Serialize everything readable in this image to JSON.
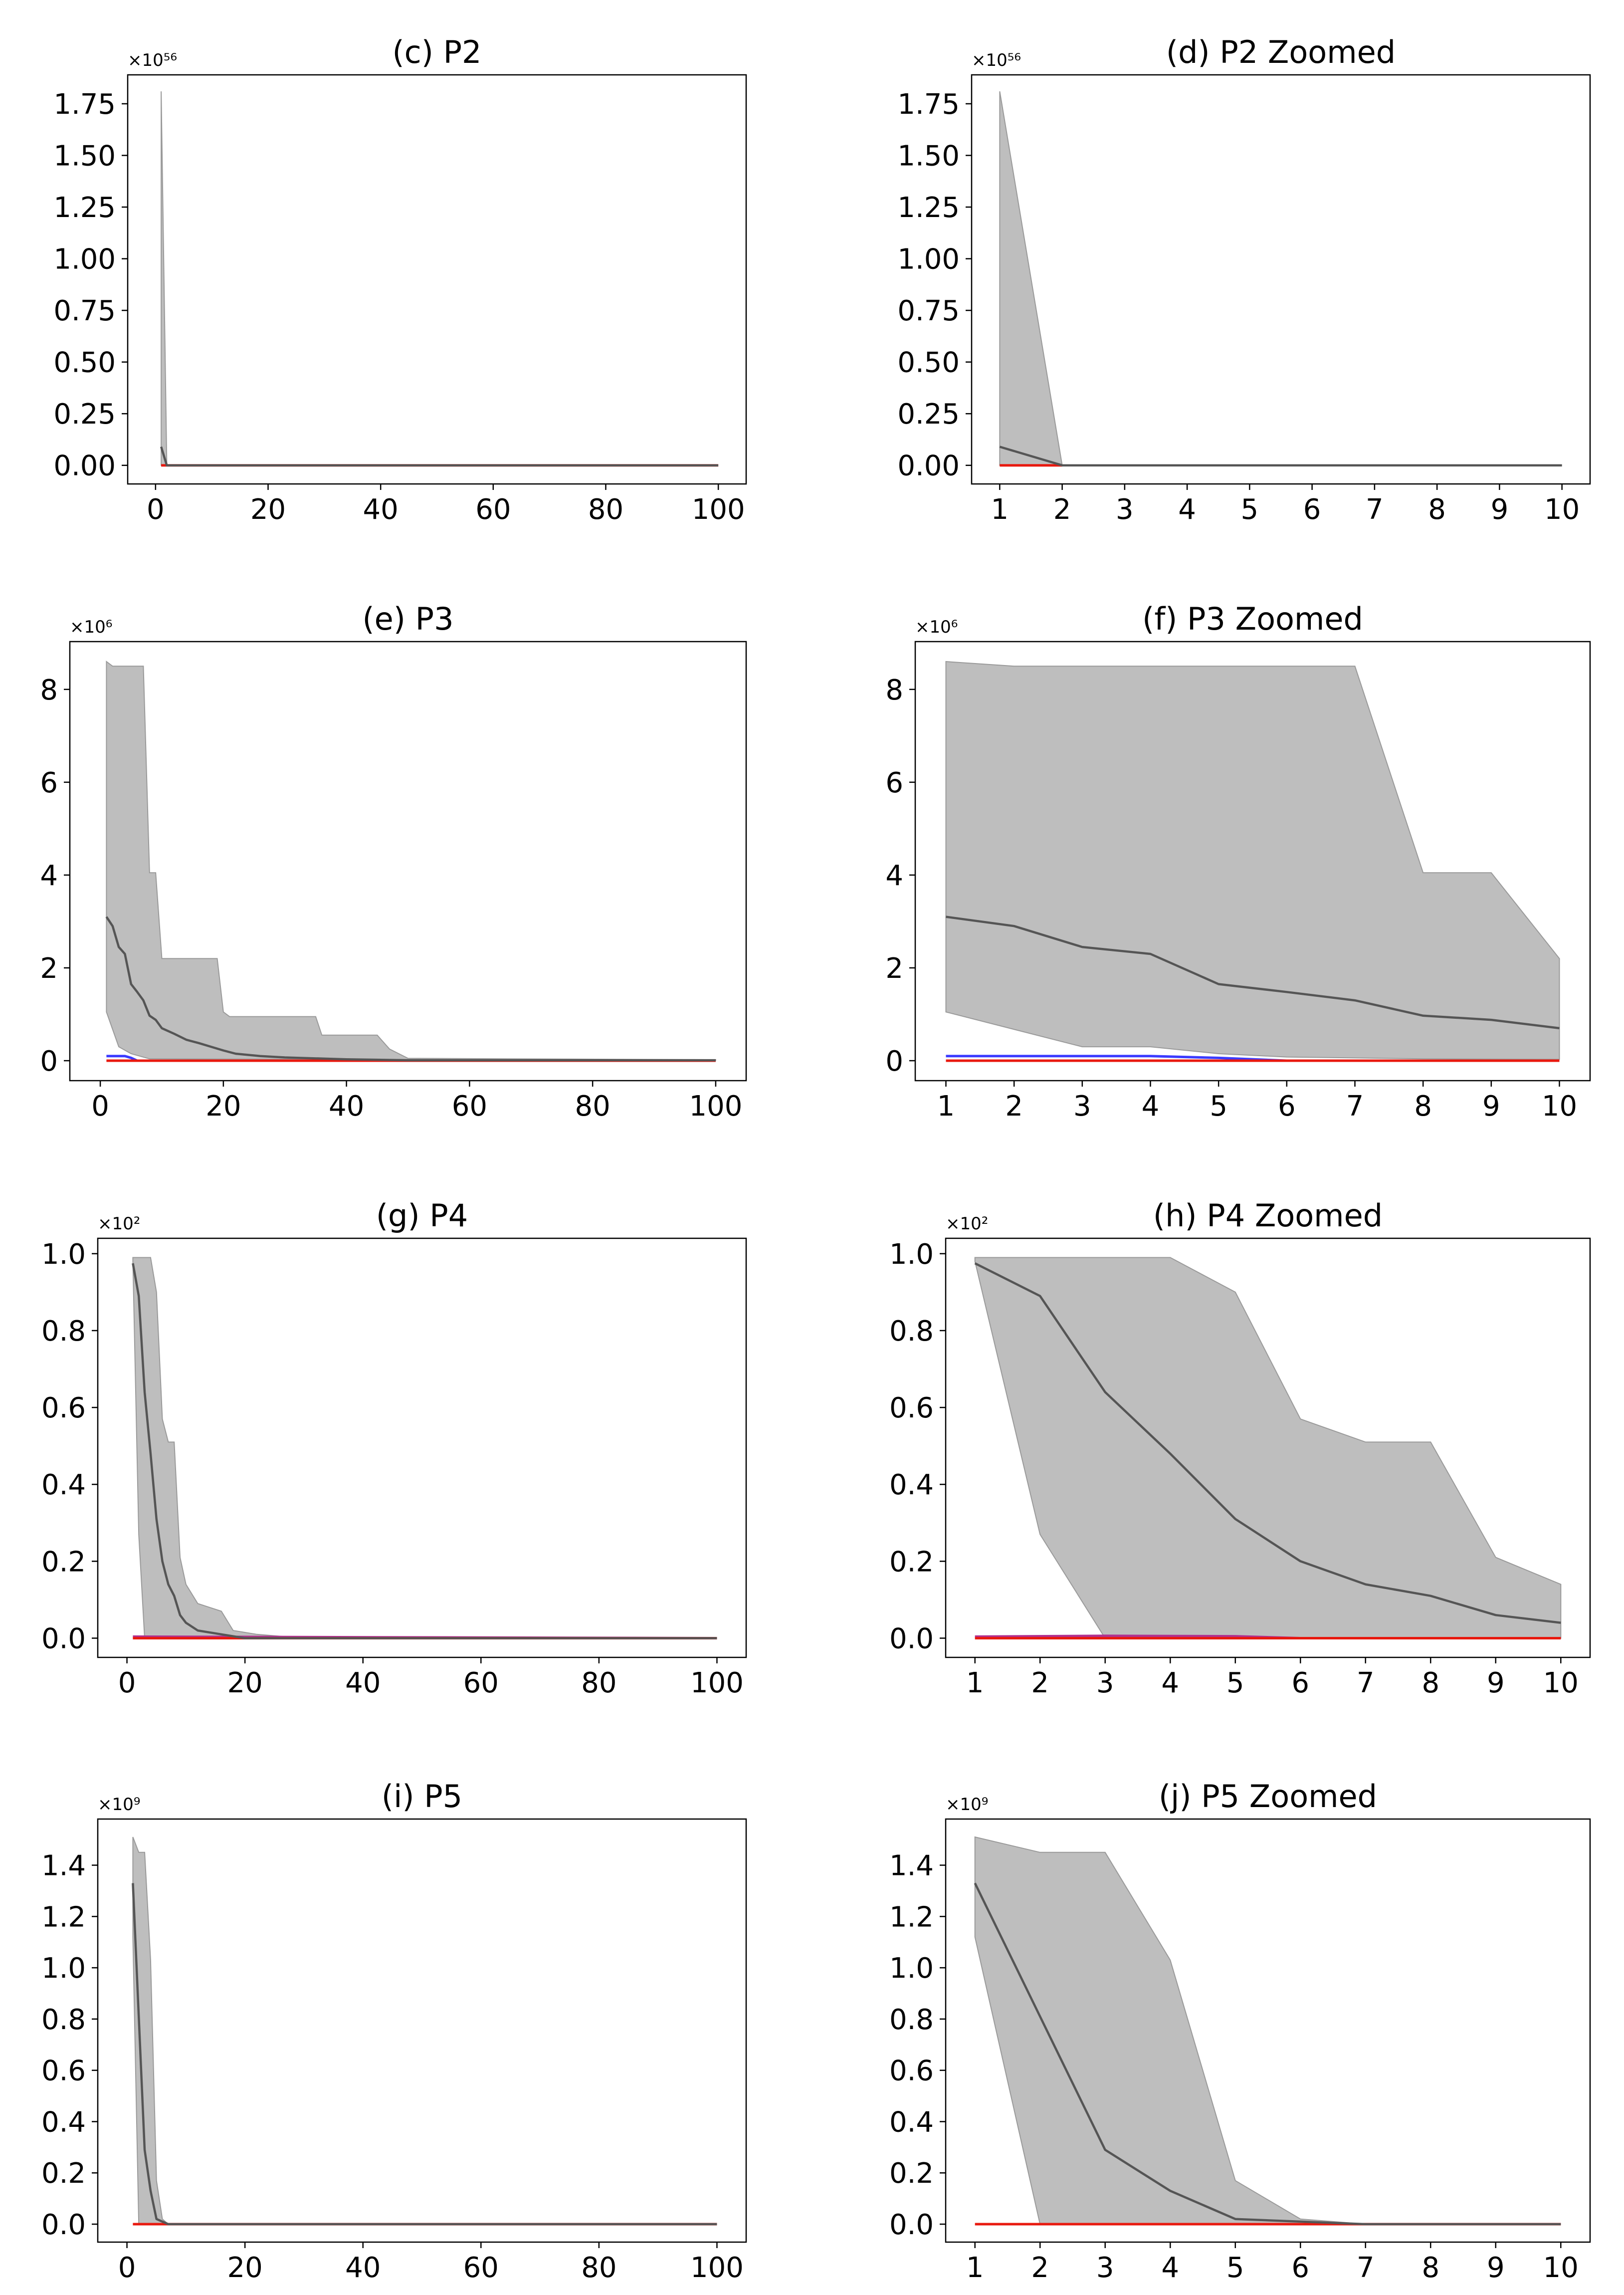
{
  "colors": {
    "band": "#bebebe",
    "band_edge": "#9a9a9a",
    "mean": "#555555",
    "red": "#e8190f",
    "blue": "#3b3bff",
    "magenta": "#b03090",
    "axis": "#000000"
  },
  "chart_data": [
    {
      "id": "c",
      "type": "line",
      "title": "(c) P2",
      "multiplier": "×10⁵⁶",
      "xlim": [
        -4.95,
        104.95
      ],
      "ylim": [
        -0.09,
        1.89
      ],
      "xticks": [
        0,
        20,
        40,
        60,
        80,
        100
      ],
      "yticks": [
        0,
        0.25,
        0.5,
        0.75,
        1.0,
        1.25,
        1.5,
        1.75
      ],
      "ytick_labels": [
        "0.00",
        "0.25",
        "0.50",
        "0.75",
        "1.00",
        "1.25",
        "1.50",
        "1.75"
      ],
      "band_upper": [
        [
          1,
          1.81
        ],
        [
          2,
          0
        ],
        [
          100,
          0
        ]
      ],
      "band_lower": [
        [
          1,
          0
        ],
        [
          100,
          0
        ]
      ],
      "mean": [
        [
          1,
          0.09
        ],
        [
          2,
          0
        ],
        [
          100,
          0
        ]
      ],
      "flat_lines": [
        {
          "color": "red",
          "points": [
            [
              1,
              0
            ],
            [
              100,
              0
            ]
          ]
        }
      ]
    },
    {
      "id": "d",
      "type": "line",
      "title": "(d) P2 Zoomed",
      "multiplier": "×10⁵⁶",
      "xlim": [
        0.55,
        10.45
      ],
      "ylim": [
        -0.09,
        1.89
      ],
      "xticks": [
        1,
        2,
        3,
        4,
        5,
        6,
        7,
        8,
        9,
        10
      ],
      "yticks": [
        0,
        0.25,
        0.5,
        0.75,
        1.0,
        1.25,
        1.5,
        1.75
      ],
      "ytick_labels": [
        "0.00",
        "0.25",
        "0.50",
        "0.75",
        "1.00",
        "1.25",
        "1.50",
        "1.75"
      ],
      "band_upper": [
        [
          1,
          1.81
        ],
        [
          2,
          0
        ],
        [
          10,
          0
        ]
      ],
      "band_lower": [
        [
          1,
          0
        ],
        [
          10,
          0
        ]
      ],
      "mean": [
        [
          1,
          0.09
        ],
        [
          2,
          0
        ],
        [
          10,
          0
        ]
      ],
      "flat_lines": [
        {
          "color": "red",
          "points": [
            [
              1,
              0
            ],
            [
              2,
              0
            ]
          ]
        }
      ]
    },
    {
      "id": "e",
      "type": "line",
      "title": "(e) P3",
      "multiplier": "×10⁶",
      "xlim": [
        -4.95,
        104.95
      ],
      "ylim": [
        -0.43,
        9.03
      ],
      "xticks": [
        0,
        20,
        40,
        60,
        80,
        100
      ],
      "yticks": [
        0,
        2,
        4,
        6,
        8
      ],
      "ytick_labels": [
        "0",
        "2",
        "4",
        "6",
        "8"
      ],
      "band_upper": [
        [
          1,
          8.6
        ],
        [
          2,
          8.5
        ],
        [
          7,
          8.5
        ],
        [
          8,
          4.05
        ],
        [
          9,
          4.05
        ],
        [
          10,
          2.2
        ],
        [
          19,
          2.2
        ],
        [
          20,
          1.05
        ],
        [
          21,
          0.95
        ],
        [
          35,
          0.95
        ],
        [
          36,
          0.55
        ],
        [
          45,
          0.55
        ],
        [
          47,
          0.25
        ],
        [
          50,
          0.05
        ],
        [
          100,
          0.02
        ]
      ],
      "band_lower": [
        [
          1,
          1.05
        ],
        [
          3,
          0.3
        ],
        [
          5,
          0.15
        ],
        [
          8,
          0.04
        ],
        [
          100,
          0.01
        ]
      ],
      "mean": [
        [
          1,
          3.1
        ],
        [
          2,
          2.9
        ],
        [
          3,
          2.45
        ],
        [
          4,
          2.3
        ],
        [
          5,
          1.65
        ],
        [
          6,
          1.48
        ],
        [
          7,
          1.3
        ],
        [
          8,
          0.97
        ],
        [
          9,
          0.88
        ],
        [
          10,
          0.7
        ],
        [
          12,
          0.58
        ],
        [
          14,
          0.45
        ],
        [
          16,
          0.38
        ],
        [
          18,
          0.3
        ],
        [
          20,
          0.22
        ],
        [
          22,
          0.15
        ],
        [
          26,
          0.1
        ],
        [
          30,
          0.07
        ],
        [
          40,
          0.03
        ],
        [
          50,
          0.01
        ],
        [
          100,
          0.01
        ]
      ],
      "flat_lines": [
        {
          "color": "blue",
          "points": [
            [
              1,
              0.1
            ],
            [
              4,
              0.1
            ],
            [
              5,
              0.06
            ],
            [
              6,
              0.0
            ],
            [
              100,
              0.0
            ]
          ]
        },
        {
          "color": "red",
          "points": [
            [
              1,
              0
            ],
            [
              100,
              0
            ]
          ]
        }
      ]
    },
    {
      "id": "f",
      "type": "line",
      "title": "(f) P3 Zoomed",
      "multiplier": "×10⁶",
      "xlim": [
        0.55,
        10.45
      ],
      "ylim": [
        -0.43,
        9.03
      ],
      "xticks": [
        1,
        2,
        3,
        4,
        5,
        6,
        7,
        8,
        9,
        10
      ],
      "yticks": [
        0,
        2,
        4,
        6,
        8
      ],
      "ytick_labels": [
        "0",
        "2",
        "4",
        "6",
        "8"
      ],
      "band_upper": [
        [
          1,
          8.6
        ],
        [
          2,
          8.5
        ],
        [
          7,
          8.5
        ],
        [
          8,
          4.05
        ],
        [
          9,
          4.05
        ],
        [
          10,
          2.2
        ]
      ],
      "band_lower": [
        [
          1,
          1.05
        ],
        [
          3,
          0.3
        ],
        [
          4,
          0.3
        ],
        [
          5,
          0.15
        ],
        [
          6,
          0.08
        ],
        [
          8,
          0.04
        ],
        [
          10,
          0.03
        ]
      ],
      "mean": [
        [
          1,
          3.1
        ],
        [
          2,
          2.9
        ],
        [
          3,
          2.45
        ],
        [
          4,
          2.3
        ],
        [
          5,
          1.65
        ],
        [
          6,
          1.48
        ],
        [
          7,
          1.3
        ],
        [
          8,
          0.97
        ],
        [
          9,
          0.88
        ],
        [
          10,
          0.7
        ]
      ],
      "flat_lines": [
        {
          "color": "blue",
          "points": [
            [
              1,
              0.1
            ],
            [
              4,
              0.1
            ],
            [
              5,
              0.06
            ],
            [
              6,
              0.0
            ],
            [
              10,
              0.0
            ]
          ]
        },
        {
          "color": "red",
          "points": [
            [
              1,
              0
            ],
            [
              10,
              0
            ]
          ]
        }
      ]
    },
    {
      "id": "g",
      "type": "line",
      "title": "(g) P4",
      "multiplier": "×10²",
      "xlim": [
        -4.95,
        104.95
      ],
      "ylim": [
        -0.05,
        1.04
      ],
      "xticks": [
        0,
        20,
        40,
        60,
        80,
        100
      ],
      "yticks": [
        0,
        0.2,
        0.4,
        0.6,
        0.8,
        1.0
      ],
      "ytick_labels": [
        "0.0",
        "0.2",
        "0.4",
        "0.6",
        "0.8",
        "1.0"
      ],
      "band_upper": [
        [
          1,
          0.99
        ],
        [
          4,
          0.99
        ],
        [
          5,
          0.9
        ],
        [
          6,
          0.57
        ],
        [
          7,
          0.51
        ],
        [
          8,
          0.51
        ],
        [
          9,
          0.21
        ],
        [
          10,
          0.14
        ],
        [
          12,
          0.09
        ],
        [
          14,
          0.08
        ],
        [
          16,
          0.07
        ],
        [
          18,
          0.02
        ],
        [
          22,
          0.01
        ],
        [
          30,
          0.0
        ],
        [
          100,
          0.0
        ]
      ],
      "band_lower": [
        [
          1,
          0.98
        ],
        [
          2,
          0.27
        ],
        [
          3,
          0.0
        ],
        [
          100,
          0.0
        ]
      ],
      "mean": [
        [
          1,
          0.975
        ],
        [
          2,
          0.89
        ],
        [
          3,
          0.64
        ],
        [
          4,
          0.48
        ],
        [
          5,
          0.31
        ],
        [
          6,
          0.2
        ],
        [
          7,
          0.14
        ],
        [
          8,
          0.11
        ],
        [
          9,
          0.06
        ],
        [
          10,
          0.04
        ],
        [
          12,
          0.02
        ],
        [
          16,
          0.01
        ],
        [
          20,
          0.0
        ],
        [
          100,
          0.0
        ]
      ],
      "flat_lines": [
        {
          "color": "magenta",
          "points": [
            [
              1,
              0.004
            ],
            [
              100,
              0.0
            ]
          ]
        },
        {
          "color": "red",
          "points": [
            [
              1,
              0
            ],
            [
              100,
              0
            ]
          ]
        }
      ]
    },
    {
      "id": "h",
      "type": "line",
      "title": "(h) P4 Zoomed",
      "multiplier": "×10²",
      "xlim": [
        0.55,
        10.45
      ],
      "ylim": [
        -0.05,
        1.04
      ],
      "xticks": [
        1,
        2,
        3,
        4,
        5,
        6,
        7,
        8,
        9,
        10
      ],
      "yticks": [
        0,
        0.2,
        0.4,
        0.6,
        0.8,
        1.0
      ],
      "ytick_labels": [
        "0.0",
        "0.2",
        "0.4",
        "0.6",
        "0.8",
        "1.0"
      ],
      "band_upper": [
        [
          1,
          0.99
        ],
        [
          4,
          0.99
        ],
        [
          5,
          0.9
        ],
        [
          6,
          0.57
        ],
        [
          7,
          0.51
        ],
        [
          8,
          0.51
        ],
        [
          9,
          0.21
        ],
        [
          10,
          0.14
        ]
      ],
      "band_lower": [
        [
          1,
          0.98
        ],
        [
          2,
          0.27
        ],
        [
          3,
          0.0
        ],
        [
          10,
          0.0
        ]
      ],
      "mean": [
        [
          1,
          0.975
        ],
        [
          2,
          0.89
        ],
        [
          3,
          0.64
        ],
        [
          4,
          0.48
        ],
        [
          5,
          0.31
        ],
        [
          6,
          0.2
        ],
        [
          7,
          0.14
        ],
        [
          8,
          0.11
        ],
        [
          9,
          0.06
        ],
        [
          10,
          0.04
        ]
      ],
      "flat_lines": [
        {
          "color": "magenta",
          "points": [
            [
              1,
              0.004
            ],
            [
              3,
              0.006
            ],
            [
              5,
              0.005
            ],
            [
              6,
              0.0
            ],
            [
              10,
              0.0
            ]
          ]
        },
        {
          "color": "red",
          "points": [
            [
              1,
              0
            ],
            [
              10,
              0
            ]
          ]
        }
      ]
    },
    {
      "id": "i",
      "type": "line",
      "title": "(i) P5",
      "multiplier": "×10⁹",
      "xlim": [
        -4.95,
        104.95
      ],
      "ylim": [
        -0.07,
        1.58
      ],
      "xticks": [
        0,
        20,
        40,
        60,
        80,
        100
      ],
      "yticks": [
        0,
        0.2,
        0.4,
        0.6,
        0.8,
        1.0,
        1.2,
        1.4
      ],
      "ytick_labels": [
        "0.0",
        "0.2",
        "0.4",
        "0.6",
        "0.8",
        "1.0",
        "1.2",
        "1.4"
      ],
      "band_upper": [
        [
          1,
          1.51
        ],
        [
          2,
          1.45
        ],
        [
          3,
          1.45
        ],
        [
          4,
          1.03
        ],
        [
          5,
          0.17
        ],
        [
          6,
          0.02
        ],
        [
          7,
          0.0
        ],
        [
          100,
          0.0
        ]
      ],
      "band_lower": [
        [
          1,
          1.12
        ],
        [
          2,
          0.0
        ],
        [
          100,
          0.0
        ]
      ],
      "mean": [
        [
          1,
          1.33
        ],
        [
          2,
          0.81
        ],
        [
          3,
          0.29
        ],
        [
          4,
          0.13
        ],
        [
          5,
          0.02
        ],
        [
          6,
          0.01
        ],
        [
          7,
          0.0
        ],
        [
          100,
          0.0
        ]
      ],
      "flat_lines": [
        {
          "color": "red",
          "points": [
            [
              1,
              0
            ],
            [
              100,
              0
            ]
          ]
        }
      ]
    },
    {
      "id": "j",
      "type": "line",
      "title": "(j) P5 Zoomed",
      "multiplier": "×10⁹",
      "xlim": [
        0.55,
        10.45
      ],
      "ylim": [
        -0.07,
        1.58
      ],
      "xticks": [
        1,
        2,
        3,
        4,
        5,
        6,
        7,
        8,
        9,
        10
      ],
      "yticks": [
        0,
        0.2,
        0.4,
        0.6,
        0.8,
        1.0,
        1.2,
        1.4
      ],
      "ytick_labels": [
        "0.0",
        "0.2",
        "0.4",
        "0.6",
        "0.8",
        "1.0",
        "1.2",
        "1.4"
      ],
      "band_upper": [
        [
          1,
          1.51
        ],
        [
          2,
          1.45
        ],
        [
          3,
          1.45
        ],
        [
          4,
          1.03
        ],
        [
          5,
          0.17
        ],
        [
          6,
          0.02
        ],
        [
          7,
          0.0
        ],
        [
          10,
          0.0
        ]
      ],
      "band_lower": [
        [
          1,
          1.12
        ],
        [
          2,
          0.0
        ],
        [
          10,
          0.0
        ]
      ],
      "mean": [
        [
          1,
          1.33
        ],
        [
          2,
          0.81
        ],
        [
          3,
          0.29
        ],
        [
          4,
          0.13
        ],
        [
          5,
          0.02
        ],
        [
          6,
          0.01
        ],
        [
          7,
          0.0
        ],
        [
          10,
          0.0
        ]
      ],
      "flat_lines": [
        {
          "color": "red",
          "points": [
            [
              1,
              0
            ],
            [
              10,
              0
            ]
          ]
        }
      ]
    }
  ]
}
